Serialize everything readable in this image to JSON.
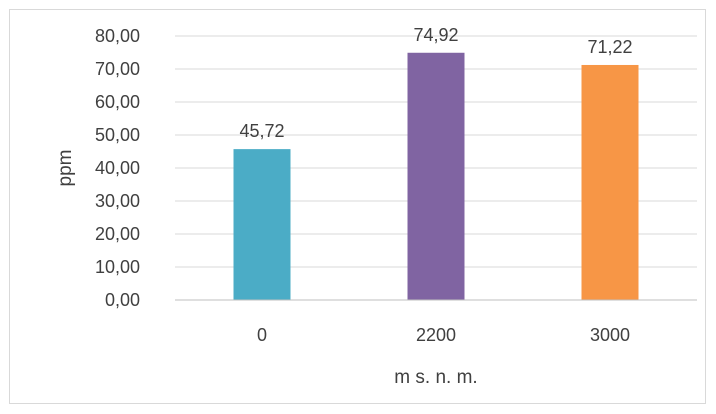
{
  "chart_data": {
    "type": "bar",
    "categories": [
      "0",
      "2200",
      "3000"
    ],
    "values": [
      45.72,
      74.92,
      71.22
    ],
    "value_labels": [
      "45,72",
      "74,92",
      "71,22"
    ],
    "bar_colors": [
      "#4BACC6",
      "#8064A2",
      "#F79646"
    ],
    "xlabel": "m s. n. m.",
    "ylabel": "ppm",
    "ylim": [
      0,
      80
    ],
    "yticks": [
      "0,00",
      "10,00",
      "20,00",
      "30,00",
      "40,00",
      "50,00",
      "60,00",
      "70,00",
      "80,00"
    ],
    "grid": true,
    "gridline_color": "#d9d9d9",
    "legend": "none"
  }
}
